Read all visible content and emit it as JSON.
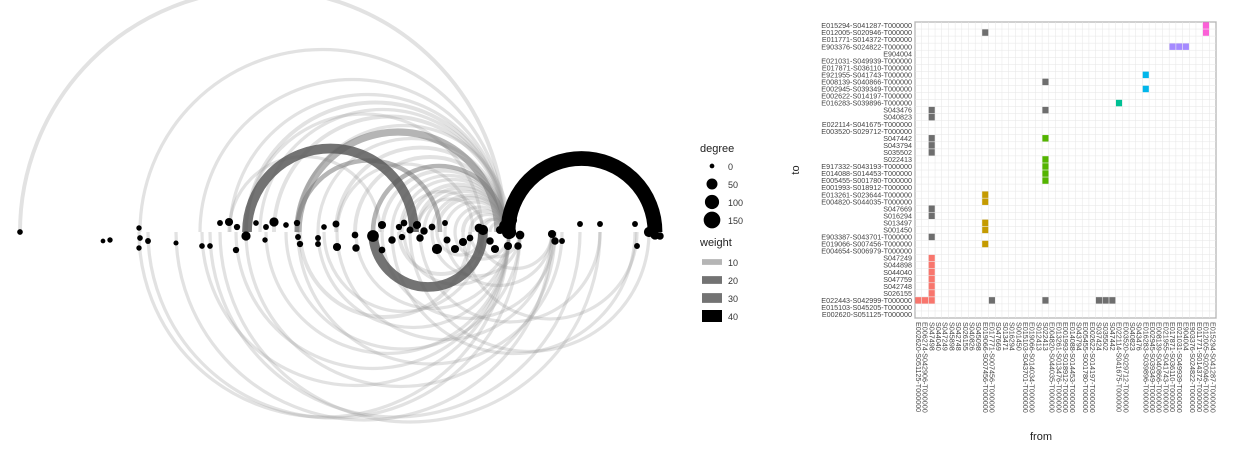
{
  "arc_chart": {
    "chart_data": {
      "type": "arc-diagram",
      "legend": {
        "degree_title": "degree",
        "degree_ticks": [
          0,
          50,
          100,
          150
        ],
        "weight_title": "weight",
        "weight_ticks": [
          10,
          20,
          30,
          40
        ]
      },
      "nodes": [
        {
          "pos": 20,
          "y": 0,
          "degree": 5
        },
        {
          "pos": 103,
          "y": 9,
          "degree": 2
        },
        {
          "pos": 110,
          "y": 8,
          "degree": 4
        },
        {
          "pos": 139,
          "y": -4,
          "degree": 4
        },
        {
          "pos": 140,
          "y": 6,
          "degree": 5
        },
        {
          "pos": 148,
          "y": 9,
          "degree": 6
        },
        {
          "pos": 139,
          "y": 16,
          "degree": 4
        },
        {
          "pos": 176,
          "y": 11,
          "degree": 3
        },
        {
          "pos": 202,
          "y": 14,
          "degree": 5
        },
        {
          "pos": 210,
          "y": 14,
          "degree": 5
        },
        {
          "pos": 220,
          "y": -9,
          "degree": 6
        },
        {
          "pos": 229,
          "y": -10,
          "degree": 20
        },
        {
          "pos": 237,
          "y": -5,
          "degree": 8
        },
        {
          "pos": 246,
          "y": 4,
          "degree": 30
        },
        {
          "pos": 236,
          "y": 18,
          "degree": 8
        },
        {
          "pos": 256,
          "y": -9,
          "degree": 5
        },
        {
          "pos": 274,
          "y": -10,
          "degree": 30
        },
        {
          "pos": 266,
          "y": -5,
          "degree": 6
        },
        {
          "pos": 265,
          "y": 8,
          "degree": 4
        },
        {
          "pos": 286,
          "y": -7,
          "degree": 5
        },
        {
          "pos": 297,
          "y": -9,
          "degree": 8
        },
        {
          "pos": 298,
          "y": 5,
          "degree": 6
        },
        {
          "pos": 300,
          "y": 12,
          "degree": 8
        },
        {
          "pos": 318,
          "y": 6,
          "degree": 6
        },
        {
          "pos": 318,
          "y": 12,
          "degree": 6
        },
        {
          "pos": 324,
          "y": -5,
          "degree": 5
        },
        {
          "pos": 336,
          "y": -8,
          "degree": 12
        },
        {
          "pos": 337,
          "y": 15,
          "degree": 20
        },
        {
          "pos": 355,
          "y": 3,
          "degree": 10
        },
        {
          "pos": 356,
          "y": 16,
          "degree": 15
        },
        {
          "pos": 373,
          "y": 4,
          "degree": 60
        },
        {
          "pos": 382,
          "y": -7,
          "degree": 20
        },
        {
          "pos": 382,
          "y": 18,
          "degree": 10
        },
        {
          "pos": 392,
          "y": 8,
          "degree": 15
        },
        {
          "pos": 399,
          "y": -5,
          "degree": 8
        },
        {
          "pos": 402,
          "y": 5,
          "degree": 8
        },
        {
          "pos": 404,
          "y": -9,
          "degree": 10
        },
        {
          "pos": 410,
          "y": -2,
          "degree": 12
        },
        {
          "pos": 417,
          "y": -7,
          "degree": 20
        },
        {
          "pos": 420,
          "y": 6,
          "degree": 15
        },
        {
          "pos": 424,
          "y": -1,
          "degree": 15
        },
        {
          "pos": 432,
          "y": -5,
          "degree": 10
        },
        {
          "pos": 437,
          "y": 17,
          "degree": 40
        },
        {
          "pos": 445,
          "y": -9,
          "degree": 6
        },
        {
          "pos": 447,
          "y": 8,
          "degree": 12
        },
        {
          "pos": 455,
          "y": 17,
          "degree": 20
        },
        {
          "pos": 463,
          "y": 10,
          "degree": 20
        },
        {
          "pos": 470,
          "y": 6,
          "degree": 10
        },
        {
          "pos": 479,
          "y": -4,
          "degree": 25
        },
        {
          "pos": 483,
          "y": -2,
          "degree": 40
        },
        {
          "pos": 490,
          "y": 9,
          "degree": 15
        },
        {
          "pos": 495,
          "y": 17,
          "degree": 20
        },
        {
          "pos": 500,
          "y": -2,
          "degree": 20
        },
        {
          "pos": 505,
          "y": -6,
          "degree": 60
        },
        {
          "pos": 509,
          "y": 0,
          "degree": 100
        },
        {
          "pos": 508,
          "y": 14,
          "degree": 20
        },
        {
          "pos": 512,
          "y": -12,
          "degree": 40
        },
        {
          "pos": 520,
          "y": 3,
          "degree": 25
        },
        {
          "pos": 518,
          "y": 14,
          "degree": 15
        },
        {
          "pos": 552,
          "y": 2,
          "degree": 20
        },
        {
          "pos": 555,
          "y": 9,
          "degree": 15
        },
        {
          "pos": 562,
          "y": 9,
          "degree": 6
        },
        {
          "pos": 580,
          "y": -8,
          "degree": 6
        },
        {
          "pos": 600,
          "y": -8,
          "degree": 6
        },
        {
          "pos": 635,
          "y": -8,
          "degree": 6
        },
        {
          "pos": 637,
          "y": 14,
          "degree": 6
        },
        {
          "pos": 649,
          "y": 0,
          "degree": 40
        },
        {
          "pos": 655,
          "y": 3,
          "degree": 30
        },
        {
          "pos": 660,
          "y": 4,
          "degree": 15
        }
      ],
      "edges_above": [
        {
          "from": 508,
          "to": 655,
          "weight": 40
        },
        {
          "from": 247,
          "to": 414,
          "weight": 25
        },
        {
          "from": 298,
          "to": 498,
          "weight": 18
        },
        {
          "from": 20,
          "to": 505,
          "weight": 8
        },
        {
          "from": 140,
          "to": 505,
          "weight": 6
        },
        {
          "from": 200,
          "to": 505,
          "weight": 6
        },
        {
          "from": 246,
          "to": 505,
          "weight": 8
        },
        {
          "from": 260,
          "to": 505,
          "weight": 6
        },
        {
          "from": 230,
          "to": 505,
          "weight": 6
        },
        {
          "from": 246,
          "to": 482,
          "weight": 6
        },
        {
          "from": 274,
          "to": 505,
          "weight": 8
        },
        {
          "from": 297,
          "to": 510,
          "weight": 6
        },
        {
          "from": 297,
          "to": 440,
          "weight": 10
        },
        {
          "from": 318,
          "to": 505,
          "weight": 6
        },
        {
          "from": 336,
          "to": 505,
          "weight": 8
        },
        {
          "from": 337,
          "to": 473,
          "weight": 6
        },
        {
          "from": 355,
          "to": 505,
          "weight": 8
        },
        {
          "from": 373,
          "to": 505,
          "weight": 10
        },
        {
          "from": 382,
          "to": 505,
          "weight": 8
        },
        {
          "from": 392,
          "to": 505,
          "weight": 6
        },
        {
          "from": 400,
          "to": 505,
          "weight": 6
        },
        {
          "from": 410,
          "to": 505,
          "weight": 8
        },
        {
          "from": 417,
          "to": 505,
          "weight": 8
        },
        {
          "from": 424,
          "to": 505,
          "weight": 6
        },
        {
          "from": 432,
          "to": 505,
          "weight": 6
        },
        {
          "from": 437,
          "to": 505,
          "weight": 8
        },
        {
          "from": 445,
          "to": 505,
          "weight": 6
        },
        {
          "from": 455,
          "to": 505,
          "weight": 6
        },
        {
          "from": 463,
          "to": 505,
          "weight": 8
        },
        {
          "from": 470,
          "to": 505,
          "weight": 6
        },
        {
          "from": 479,
          "to": 505,
          "weight": 6
        },
        {
          "from": 483,
          "to": 509,
          "weight": 6
        },
        {
          "from": 490,
          "to": 509,
          "weight": 6
        },
        {
          "from": 402,
          "to": 483,
          "weight": 6
        },
        {
          "from": 417,
          "to": 483,
          "weight": 6
        },
        {
          "from": 229,
          "to": 380,
          "weight": 6
        }
      ],
      "edges_below": [
        {
          "from": 373,
          "to": 483,
          "weight": 25
        },
        {
          "from": 139,
          "to": 509,
          "weight": 6
        },
        {
          "from": 148,
          "to": 520,
          "weight": 6
        },
        {
          "from": 176,
          "to": 552,
          "weight": 6
        },
        {
          "from": 202,
          "to": 509,
          "weight": 6
        },
        {
          "from": 210,
          "to": 580,
          "weight": 6
        },
        {
          "from": 220,
          "to": 600,
          "weight": 6
        },
        {
          "from": 236,
          "to": 509,
          "weight": 6
        },
        {
          "from": 246,
          "to": 555,
          "weight": 6
        },
        {
          "from": 266,
          "to": 509,
          "weight": 6
        },
        {
          "from": 286,
          "to": 520,
          "weight": 6
        },
        {
          "from": 298,
          "to": 562,
          "weight": 6
        },
        {
          "from": 300,
          "to": 470,
          "weight": 8
        },
        {
          "from": 318,
          "to": 509,
          "weight": 6
        },
        {
          "from": 324,
          "to": 483,
          "weight": 6
        },
        {
          "from": 337,
          "to": 552,
          "weight": 6
        },
        {
          "from": 356,
          "to": 509,
          "weight": 6
        },
        {
          "from": 382,
          "to": 555,
          "weight": 6
        },
        {
          "from": 392,
          "to": 635,
          "weight": 6
        },
        {
          "from": 399,
          "to": 483,
          "weight": 8
        },
        {
          "from": 404,
          "to": 509,
          "weight": 6
        },
        {
          "from": 410,
          "to": 649,
          "weight": 6
        },
        {
          "from": 420,
          "to": 600,
          "weight": 6
        },
        {
          "from": 432,
          "to": 520,
          "weight": 6
        },
        {
          "from": 437,
          "to": 483,
          "weight": 6
        },
        {
          "from": 445,
          "to": 552,
          "weight": 6
        },
        {
          "from": 455,
          "to": 509,
          "weight": 6
        },
        {
          "from": 463,
          "to": 637,
          "weight": 6
        },
        {
          "from": 470,
          "to": 520,
          "weight": 6
        },
        {
          "from": 479,
          "to": 552,
          "weight": 6
        }
      ]
    }
  },
  "heatmap": {
    "chart_data": {
      "type": "heatmap",
      "xlabel": "from",
      "ylabel": "to",
      "x_labels": [
        "E002620-S051125-T000000",
        "E006274-S042906-T000000",
        "S047498",
        "S044040",
        "S047249",
        "S045898",
        "S042748",
        "S026155",
        "S040826",
        "S045098",
        "E019066-S007456-T000000",
        "E017771-S007456-T000000",
        "S047669",
        "S013471",
        "S016294",
        "S001450",
        "E015103-S043701-T000000",
        "E019066-S014034-T000000",
        "S012413",
        "S022413",
        "E004820-S044035-T000000",
        "E013261-S013476-T000000",
        "E001993-S018912-T000000",
        "E014088-S014453-T000000",
        "S043794",
        "E005455-S001780-T000000",
        "E002622-S014197-T000000",
        "S037424",
        "S035502",
        "S047442",
        "E022114-S041675-T000000",
        "E003520-S029712-T000000",
        "S040823",
        "S043476",
        "E016283-S039896-T000000",
        "E002945-S039349-T000000",
        "E008139-S040866-T000000",
        "E021955-S041743-T000000",
        "E017871-S036110-T000000",
        "E021031-S049939-T000000",
        "E904004",
        "E903376-S024822-T000000",
        "E011771-S014372-T000000",
        "E012005-S020946-T000000",
        "E015294-S041287-T000000"
      ],
      "y_labels": [
        "E002620-S051125-T000000",
        "E015103-S045205-T000000",
        "E022443-S042999-T000000",
        "S026155",
        "S042748",
        "S047759",
        "S044040",
        "S044898",
        "S047249",
        "E004654-S006979-T000000",
        "E019066-S007456-T000000",
        "E903387-S043701-T000000",
        "S001450",
        "S013497",
        "S016294",
        "S047669",
        "E004820-S044035-T000000",
        "E013261-S023644-T000000",
        "E001993-S018912-T000000",
        "E005455-S001780-T000000",
        "E014088-S014453-T000000",
        "E917332-S043193-T000000",
        "S022413",
        "S035502",
        "S043794",
        "S047442",
        "E003520-S029712-T000000",
        "E022114-S041675-T000000",
        "S040823",
        "S043476",
        "E016283-S039896-T000000",
        "E002622-S014197-T000000",
        "E002945-S039349-T000000",
        "E008139-S040866-T000000",
        "E921955-S041743-T000000",
        "E017871-S036110-T000000",
        "E021031-S049939-T000000",
        "E904004",
        "E903376-S024822-T000000",
        "E011771-S014372-T000000",
        "E012005-S020946-T000000",
        "E015294-S041287-T000000"
      ],
      "cells": [
        {
          "x": 0,
          "y": 2,
          "color": "#F8766D"
        },
        {
          "x": 1,
          "y": 2,
          "color": "#F8766D"
        },
        {
          "x": 2,
          "y": 2,
          "color": "#F8766D"
        },
        {
          "x": 2,
          "y": 3,
          "color": "#F8766D"
        },
        {
          "x": 2,
          "y": 4,
          "color": "#F8766D"
        },
        {
          "x": 2,
          "y": 5,
          "color": "#F8766D"
        },
        {
          "x": 2,
          "y": 6,
          "color": "#F8766D"
        },
        {
          "x": 2,
          "y": 7,
          "color": "#F8766D"
        },
        {
          "x": 2,
          "y": 8,
          "color": "#F8766D"
        },
        {
          "x": 2,
          "y": 11,
          "color": "#6e6e6e"
        },
        {
          "x": 2,
          "y": 14,
          "color": "#6e6e6e"
        },
        {
          "x": 2,
          "y": 15,
          "color": "#6e6e6e"
        },
        {
          "x": 2,
          "y": 23,
          "color": "#6e6e6e"
        },
        {
          "x": 2,
          "y": 24,
          "color": "#6e6e6e"
        },
        {
          "x": 2,
          "y": 25,
          "color": "#6e6e6e"
        },
        {
          "x": 2,
          "y": 28,
          "color": "#6e6e6e"
        },
        {
          "x": 2,
          "y": 29,
          "color": "#6e6e6e"
        },
        {
          "x": 10,
          "y": 10,
          "color": "#C49A00"
        },
        {
          "x": 10,
          "y": 12,
          "color": "#C49A00"
        },
        {
          "x": 10,
          "y": 13,
          "color": "#C49A00"
        },
        {
          "x": 10,
          "y": 16,
          "color": "#C49A00"
        },
        {
          "x": 10,
          "y": 17,
          "color": "#C49A00"
        },
        {
          "x": 10,
          "y": 40,
          "color": "#6e6e6e"
        },
        {
          "x": 11,
          "y": 2,
          "color": "#6e6e6e"
        },
        {
          "x": 19,
          "y": 2,
          "color": "#6e6e6e"
        },
        {
          "x": 19,
          "y": 29,
          "color": "#6e6e6e"
        },
        {
          "x": 19,
          "y": 33,
          "color": "#6e6e6e"
        },
        {
          "x": 19,
          "y": 19,
          "color": "#53B400"
        },
        {
          "x": 19,
          "y": 20,
          "color": "#53B400"
        },
        {
          "x": 19,
          "y": 21,
          "color": "#53B400"
        },
        {
          "x": 19,
          "y": 22,
          "color": "#53B400"
        },
        {
          "x": 19,
          "y": 25,
          "color": "#53B400"
        },
        {
          "x": 27,
          "y": 2,
          "color": "#6e6e6e"
        },
        {
          "x": 28,
          "y": 2,
          "color": "#6e6e6e"
        },
        {
          "x": 29,
          "y": 2,
          "color": "#6e6e6e"
        },
        {
          "x": 30,
          "y": 30,
          "color": "#00C094"
        },
        {
          "x": 34,
          "y": 32,
          "color": "#00B6EB"
        },
        {
          "x": 34,
          "y": 34,
          "color": "#00B6EB"
        },
        {
          "x": 38,
          "y": 38,
          "color": "#A58AFF"
        },
        {
          "x": 39,
          "y": 38,
          "color": "#A58AFF"
        },
        {
          "x": 40,
          "y": 38,
          "color": "#A58AFF"
        },
        {
          "x": 43,
          "y": 40,
          "color": "#FB61D7"
        },
        {
          "x": 43,
          "y": 41,
          "color": "#FB61D7"
        }
      ]
    }
  }
}
